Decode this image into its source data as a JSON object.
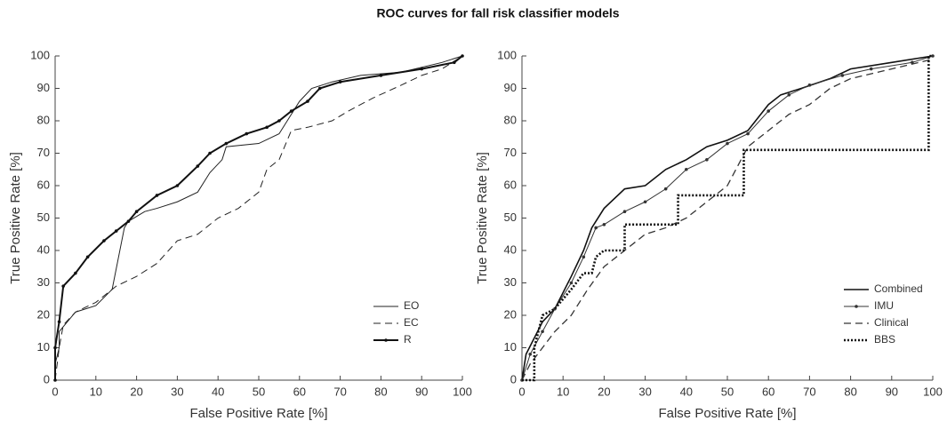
{
  "title": "ROC curves for fall risk classifier models",
  "chart_data": [
    {
      "type": "line",
      "xlabel": "False Positive Rate [%]",
      "ylabel": "True Positive Rate [%]",
      "xlim": [
        0,
        100
      ],
      "ylim": [
        0,
        100
      ],
      "xticks": [
        0,
        10,
        20,
        30,
        40,
        50,
        60,
        70,
        80,
        90,
        100
      ],
      "yticks": [
        0,
        10,
        20,
        30,
        40,
        50,
        60,
        70,
        80,
        90,
        100
      ],
      "legend": "lower right",
      "series": [
        {
          "name": "EO",
          "color": "#222222",
          "dash": "solid",
          "linewidth": 1,
          "marker": false,
          "x": [
            0,
            0,
            1,
            1,
            3,
            5,
            10,
            14,
            17,
            18,
            22,
            25,
            30,
            35,
            38,
            41,
            42,
            50,
            55,
            57,
            60,
            63,
            68,
            75,
            85,
            95,
            100
          ],
          "values": [
            0,
            5,
            10,
            15,
            18,
            21,
            23,
            28,
            47,
            49,
            52,
            53,
            55,
            58,
            64,
            68,
            72,
            73,
            76,
            80,
            86,
            90,
            92,
            94,
            95,
            98,
            100
          ]
        },
        {
          "name": "EC",
          "color": "#222222",
          "dash": "dashed",
          "linewidth": 1,
          "marker": false,
          "x": [
            0,
            1,
            2,
            5,
            10,
            15,
            20,
            25,
            30,
            35,
            40,
            45,
            50,
            52,
            55,
            58,
            62,
            68,
            72,
            78,
            85,
            90,
            95,
            100
          ],
          "values": [
            0,
            10,
            17,
            21,
            24,
            29,
            32,
            36,
            43,
            45,
            50,
            53,
            58,
            65,
            68,
            77,
            78,
            80,
            83,
            87,
            91,
            94,
            96,
            100
          ]
        },
        {
          "name": "R",
          "color": "#111111",
          "dash": "solid",
          "linewidth": 2,
          "marker": true,
          "x": [
            0,
            0,
            1,
            2,
            5,
            8,
            12,
            15,
            18,
            20,
            25,
            30,
            35,
            38,
            42,
            47,
            52,
            55,
            58,
            62,
            65,
            70,
            80,
            90,
            98,
            100
          ],
          "values": [
            0,
            10,
            18,
            29,
            33,
            38,
            43,
            46,
            49,
            52,
            57,
            60,
            66,
            70,
            73,
            76,
            78,
            80,
            83,
            86,
            90,
            92,
            94,
            96,
            98,
            100
          ]
        }
      ]
    },
    {
      "type": "line",
      "xlabel": "False Positive Rate [%]",
      "ylabel": "True Positive Rate [%]",
      "xlim": [
        0,
        100
      ],
      "ylim": [
        0,
        100
      ],
      "xticks": [
        0,
        10,
        20,
        30,
        40,
        50,
        60,
        70,
        80,
        90,
        100
      ],
      "yticks": [
        0,
        10,
        20,
        30,
        40,
        50,
        60,
        70,
        80,
        90,
        100
      ],
      "legend": "lower right",
      "series": [
        {
          "name": "Combined",
          "color": "#111111",
          "dash": "solid",
          "linewidth": 1.6,
          "marker": false,
          "x": [
            0,
            1,
            3,
            5,
            8,
            10,
            12,
            15,
            17,
            20,
            25,
            30,
            35,
            40,
            45,
            50,
            55,
            60,
            63,
            68,
            75,
            80,
            90,
            100
          ],
          "values": [
            0,
            8,
            13,
            18,
            22,
            27,
            32,
            40,
            47,
            53,
            59,
            60,
            65,
            68,
            72,
            74,
            77,
            85,
            88,
            90,
            93,
            96,
            98,
            100
          ]
        },
        {
          "name": "IMU",
          "color": "#333333",
          "dash": "solid",
          "linewidth": 1,
          "marker": true,
          "x": [
            0,
            2,
            5,
            8,
            12,
            15,
            18,
            20,
            25,
            30,
            35,
            40,
            45,
            50,
            55,
            60,
            65,
            70,
            78,
            85,
            95,
            100
          ],
          "values": [
            0,
            8,
            15,
            22,
            30,
            38,
            47,
            48,
            52,
            55,
            59,
            65,
            68,
            73,
            76,
            83,
            88,
            91,
            94,
            96,
            98,
            100
          ]
        },
        {
          "name": "Clinical",
          "color": "#333333",
          "dash": "dashed",
          "linewidth": 1.3,
          "marker": false,
          "x": [
            0,
            2,
            5,
            8,
            12,
            16,
            20,
            25,
            30,
            35,
            40,
            45,
            50,
            55,
            60,
            65,
            70,
            75,
            80,
            90,
            100
          ],
          "values": [
            0,
            5,
            10,
            15,
            20,
            28,
            35,
            40,
            45,
            47,
            50,
            55,
            60,
            72,
            77,
            82,
            85,
            90,
            93,
            96,
            99
          ]
        },
        {
          "name": "BBS",
          "color": "#111111",
          "dash": "dotted",
          "linewidth": 2.6,
          "marker": false,
          "x": [
            0,
            3,
            3,
            5,
            8,
            12,
            15,
            17,
            18,
            20,
            25,
            25,
            38,
            38,
            54,
            54,
            99,
            99,
            100
          ],
          "values": [
            0,
            0,
            10,
            20,
            22,
            28,
            33,
            33,
            38,
            40,
            40,
            48,
            48,
            57,
            57,
            71,
            71,
            100,
            100
          ]
        }
      ]
    }
  ]
}
